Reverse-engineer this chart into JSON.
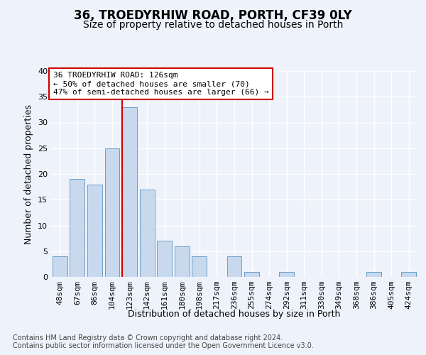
{
  "title": "36, TROEDYRHIW ROAD, PORTH, CF39 0LY",
  "subtitle": "Size of property relative to detached houses in Porth",
  "xlabel": "Distribution of detached houses by size in Porth",
  "ylabel": "Number of detached properties",
  "categories": [
    "48sqm",
    "67sqm",
    "86sqm",
    "104sqm",
    "123sqm",
    "142sqm",
    "161sqm",
    "180sqm",
    "198sqm",
    "217sqm",
    "236sqm",
    "255sqm",
    "274sqm",
    "292sqm",
    "311sqm",
    "330sqm",
    "349sqm",
    "368sqm",
    "386sqm",
    "405sqm",
    "424sqm"
  ],
  "values": [
    4,
    19,
    18,
    25,
    33,
    17,
    7,
    6,
    4,
    0,
    4,
    1,
    0,
    1,
    0,
    0,
    0,
    0,
    1,
    0,
    1
  ],
  "bar_color": "#c8d9ee",
  "bar_edge_color": "#6b9ec8",
  "highlight_line_color": "#cc0000",
  "vline_bar_index": 4,
  "annotation_title": "36 TROEDYRHIW ROAD: 126sqm",
  "annotation_line1": "← 50% of detached houses are smaller (70)",
  "annotation_line2": "47% of semi-detached houses are larger (66) →",
  "annotation_box_color": "#cc0000",
  "ylim": [
    0,
    40
  ],
  "yticks": [
    0,
    5,
    10,
    15,
    20,
    25,
    30,
    35,
    40
  ],
  "footer1": "Contains HM Land Registry data © Crown copyright and database right 2024.",
  "footer2": "Contains public sector information licensed under the Open Government Licence v3.0.",
  "bg_color": "#eef3fb",
  "grid_color": "#ffffff",
  "title_fontsize": 12,
  "subtitle_fontsize": 10,
  "axis_label_fontsize": 9,
  "tick_fontsize": 8,
  "annotation_fontsize": 8,
  "footer_fontsize": 7
}
